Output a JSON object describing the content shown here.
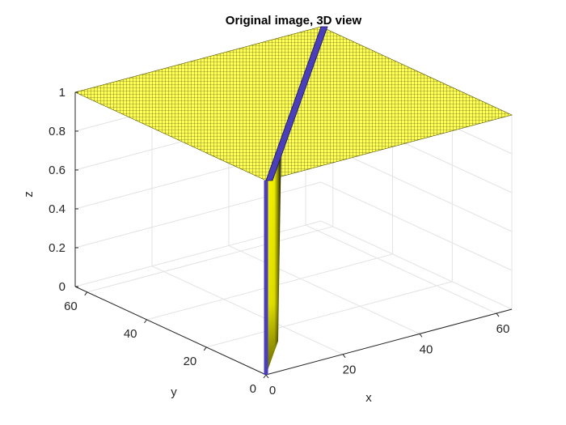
{
  "chart_data": {
    "type": "surface",
    "title": "Original image, 3D view",
    "xlabel": "x",
    "ylabel": "y",
    "zlabel": "z",
    "xlim": [
      0,
      64
    ],
    "ylim": [
      0,
      64
    ],
    "zlim": [
      0,
      1
    ],
    "x_ticks": [
      "0",
      "20",
      "40",
      "60"
    ],
    "y_ticks": [
      "0",
      "20",
      "40",
      "60"
    ],
    "z_ticks": [
      "0",
      "0.2",
      "0.4",
      "0.6",
      "0.8",
      "1"
    ],
    "grid": true,
    "surface": {
      "description_values": {
        "plateau_z": 1,
        "floor_z": 0,
        "edge_line": {
          "from": [
            0,
            0
          ],
          "to": [
            64,
            64
          ]
        }
      }
    },
    "colors": {
      "plateau": "#ffff4d",
      "mesh": "#222222",
      "edge_band": "#4a3fb8",
      "wall_bright": "#ffff00",
      "wall_dark": "#000000"
    }
  }
}
